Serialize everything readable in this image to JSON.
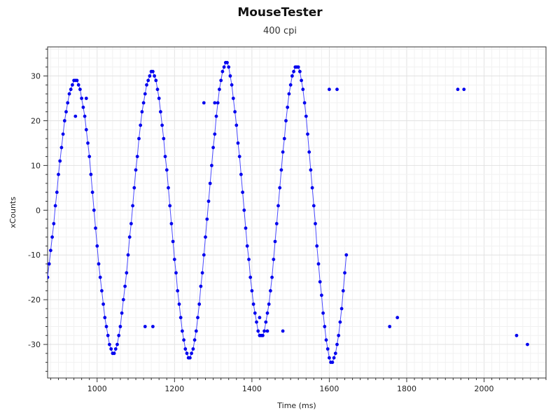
{
  "chart_data": {
    "type": "scatter",
    "title": "MouseTester",
    "subtitle": "400 cpi",
    "xlabel": "Time (ms)",
    "ylabel": "xCounts",
    "xlim": [
      872,
      2160
    ],
    "ylim": [
      -37.5,
      36.5
    ],
    "x_ticks": [
      1000,
      1200,
      1400,
      1600,
      1800,
      2000
    ],
    "y_ticks": [
      -30,
      -20,
      -10,
      0,
      10,
      20,
      30
    ],
    "grid": true,
    "legend": "none",
    "sample_interval_ms": 4,
    "series": [
      {
        "color": "#0000ee",
        "line_color": "#4a4aff",
        "marker": "circle",
        "x_start": 872,
        "x_step": 4,
        "values": [
          -15,
          -12,
          -9,
          -6,
          -3,
          1,
          4,
          8,
          11,
          14,
          17,
          20,
          22,
          24,
          26,
          27,
          28,
          29,
          29,
          29,
          28,
          27,
          25,
          23,
          21,
          18,
          15,
          12,
          8,
          4,
          0,
          -4,
          -8,
          -12,
          -15,
          -18,
          -21,
          -24,
          -26,
          -28,
          -30,
          -31,
          -32,
          -32,
          -31,
          -30,
          -28,
          -26,
          -23,
          -20,
          -17,
          -14,
          -10,
          -6,
          -3,
          1,
          5,
          9,
          12,
          16,
          19,
          22,
          24,
          26,
          28,
          29,
          30,
          31,
          31,
          30,
          29,
          27,
          25,
          22,
          19,
          16,
          12,
          9,
          5,
          1,
          -3,
          -7,
          -11,
          -14,
          -18,
          -21,
          -24,
          -27,
          -29,
          -31,
          -32,
          -33,
          -33,
          -32,
          -31,
          -29,
          -27,
          -24,
          -21,
          -17,
          -14,
          -10,
          -6,
          -2,
          2,
          6,
          10,
          14,
          17,
          21,
          24,
          27,
          29,
          31,
          32,
          33,
          33,
          32,
          30,
          28,
          25,
          22,
          19,
          15,
          12,
          8,
          4,
          0,
          -4,
          -8,
          -11,
          -15,
          -18,
          -21,
          -23,
          -25,
          -27,
          -28,
          -28,
          -28,
          -27,
          -25,
          -23,
          -21,
          -18,
          -15,
          -11,
          -7,
          -3,
          1,
          5,
          9,
          13,
          16,
          20,
          23,
          26,
          28,
          30,
          31,
          32,
          32,
          32,
          31,
          29,
          27,
          24,
          21,
          17,
          13,
          9,
          5,
          1,
          -3,
          -8,
          -12,
          -16,
          -19,
          -23,
          -26,
          -29,
          -31,
          -33,
          -34,
          -34,
          -33,
          -32,
          -30,
          -28,
          -25,
          -22,
          -18,
          -14,
          -10
        ],
        "extra_points": [
          [
            944,
            21
          ],
          [
            972,
            25
          ],
          [
            1124,
            -26
          ],
          [
            1144,
            -26
          ],
          [
            1276,
            24
          ],
          [
            1304,
            24
          ],
          [
            1420,
            -24
          ],
          [
            1440,
            -27
          ],
          [
            1480,
            -27
          ],
          [
            1600,
            27
          ],
          [
            1620,
            27
          ],
          [
            1756,
            -26
          ],
          [
            1776,
            -24
          ],
          [
            1932,
            27
          ],
          [
            1948,
            27
          ],
          [
            2084,
            -28
          ],
          [
            2112,
            -30
          ]
        ]
      }
    ]
  }
}
